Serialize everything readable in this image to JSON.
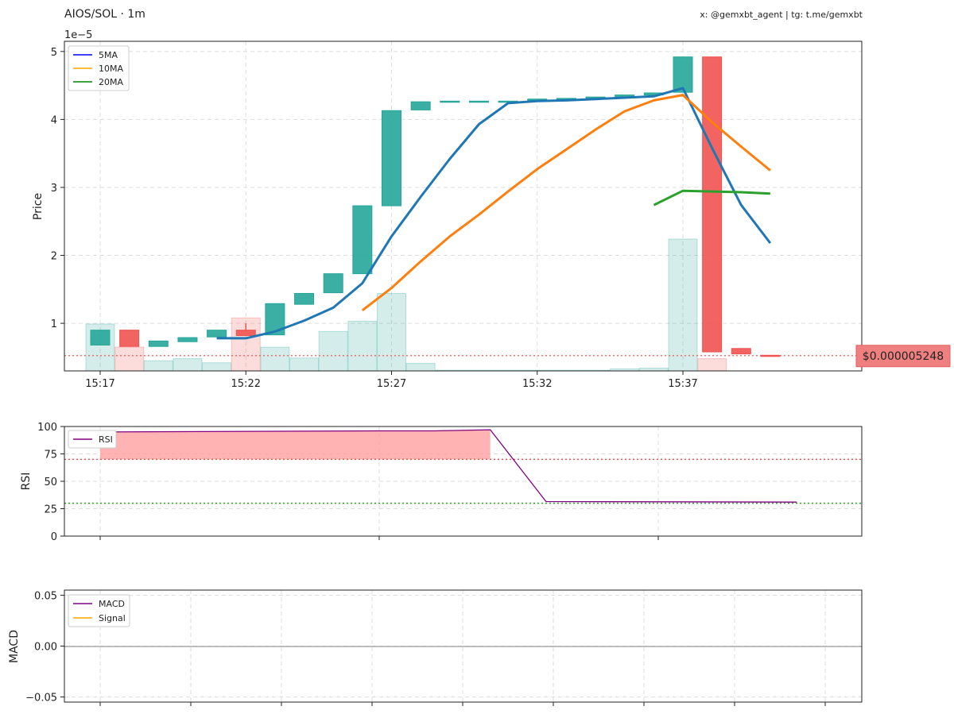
{
  "header": {
    "title": "AIOS/SOL · 1m",
    "credit": "x: @gemxbt_agent | tg: t.me/gemxbt"
  },
  "colors": {
    "up": "#26a69a",
    "down": "#ef5350",
    "ma5": "#1f77b4",
    "ma10": "#ff7f0e",
    "ma20": "#2ca02c",
    "rsi": "#800080",
    "signal": "#ffa500",
    "price_line": "#ef5350"
  },
  "chart_data": [
    {
      "type": "candlestick",
      "ylabel": "Price",
      "y_exponent_label": "1e−5",
      "ylim": [
        0.3,
        5.15
      ],
      "yticks": [
        "1",
        "2",
        "3",
        "4",
        "5"
      ],
      "ytick_values": [
        1,
        2,
        3,
        4,
        5
      ],
      "xtick_labels": [
        "15:17",
        "15:22",
        "15:27",
        "15:32",
        "15:37"
      ],
      "xtick_minutes": [
        17,
        22,
        27,
        32,
        37
      ],
      "grid": true,
      "legend": {
        "placement": "top-left",
        "entries": [
          "5MA",
          "10MA",
          "20MA"
        ]
      },
      "last_price_label": "$0.000005248",
      "last_price_value": 0.5248,
      "candles": [
        {
          "t": 17,
          "o": 0.68,
          "c": 0.9,
          "dir": "up"
        },
        {
          "t": 18,
          "o": 0.9,
          "c": 0.66,
          "dir": "down"
        },
        {
          "t": 19,
          "o": 0.66,
          "c": 0.74,
          "dir": "up"
        },
        {
          "t": 20,
          "o": 0.73,
          "c": 0.79,
          "dir": "up"
        },
        {
          "t": 21,
          "o": 0.8,
          "c": 0.9,
          "dir": "up"
        },
        {
          "t": 22,
          "o": 0.9,
          "c": 0.82,
          "h": 1.0,
          "dir": "down"
        },
        {
          "t": 23,
          "o": 0.83,
          "c": 1.29,
          "dir": "up"
        },
        {
          "t": 24,
          "o": 1.28,
          "c": 1.44,
          "dir": "up"
        },
        {
          "t": 25,
          "o": 1.45,
          "c": 1.73,
          "dir": "up"
        },
        {
          "t": 26,
          "o": 1.73,
          "c": 2.73,
          "dir": "up"
        },
        {
          "t": 27,
          "o": 2.73,
          "c": 4.13,
          "dir": "up"
        },
        {
          "t": 28,
          "o": 4.14,
          "c": 4.26,
          "dir": "up"
        },
        {
          "t": 29,
          "o": 4.26,
          "c": 4.27,
          "dir": "up"
        },
        {
          "t": 30,
          "o": 4.26,
          "c": 4.27,
          "dir": "up"
        },
        {
          "t": 31,
          "o": 4.26,
          "c": 4.27,
          "dir": "up"
        },
        {
          "t": 32,
          "o": 4.28,
          "c": 4.3,
          "dir": "up"
        },
        {
          "t": 33,
          "o": 4.29,
          "c": 4.31,
          "dir": "up"
        },
        {
          "t": 34,
          "o": 4.31,
          "c": 4.33,
          "dir": "up"
        },
        {
          "t": 35,
          "o": 4.33,
          "c": 4.36,
          "dir": "up"
        },
        {
          "t": 36,
          "o": 4.36,
          "c": 4.39,
          "dir": "up"
        },
        {
          "t": 37,
          "o": 4.4,
          "c": 4.92,
          "dir": "up"
        },
        {
          "t": 38,
          "o": 4.92,
          "c": 0.58,
          "dir": "down"
        },
        {
          "t": 39,
          "o": 0.63,
          "c": 0.55,
          "dir": "down"
        },
        {
          "t": 40,
          "o": 0.53,
          "c": 0.52,
          "dir": "down"
        }
      ],
      "volume": [
        {
          "t": 17,
          "v": 0.99,
          "dir": "up"
        },
        {
          "t": 18,
          "v": 0.65,
          "dir": "down"
        },
        {
          "t": 19,
          "v": 0.45,
          "dir": "up"
        },
        {
          "t": 20,
          "v": 0.48,
          "dir": "up"
        },
        {
          "t": 21,
          "v": 0.42,
          "dir": "up"
        },
        {
          "t": 22,
          "v": 1.08,
          "dir": "down"
        },
        {
          "t": 23,
          "v": 0.65,
          "dir": "up"
        },
        {
          "t": 24,
          "v": 0.49,
          "dir": "up"
        },
        {
          "t": 25,
          "v": 0.88,
          "dir": "up"
        },
        {
          "t": 26,
          "v": 1.03,
          "dir": "up"
        },
        {
          "t": 27,
          "v": 1.44,
          "dir": "up"
        },
        {
          "t": 28,
          "v": 0.41,
          "dir": "up"
        },
        {
          "t": 29,
          "v": 0.31,
          "dir": "up"
        },
        {
          "t": 30,
          "v": 0.31,
          "dir": "up"
        },
        {
          "t": 31,
          "v": 0.31,
          "dir": "up"
        },
        {
          "t": 32,
          "v": 0.31,
          "dir": "up"
        },
        {
          "t": 33,
          "v": 0.31,
          "dir": "up"
        },
        {
          "t": 34,
          "v": 0.31,
          "dir": "up"
        },
        {
          "t": 35,
          "v": 0.33,
          "dir": "up"
        },
        {
          "t": 36,
          "v": 0.34,
          "dir": "up"
        },
        {
          "t": 37,
          "v": 2.24,
          "dir": "up"
        },
        {
          "t": 38,
          "v": 0.48,
          "dir": "down"
        }
      ],
      "series": [
        {
          "name": "5MA",
          "points": [
            [
              21,
              0.78
            ],
            [
              22,
              0.78
            ],
            [
              23,
              0.88
            ],
            [
              24,
              1.04
            ],
            [
              25,
              1.23
            ],
            [
              26,
              1.59
            ],
            [
              27,
              2.28
            ],
            [
              28,
              2.86
            ],
            [
              29,
              3.42
            ],
            [
              30,
              3.93
            ],
            [
              31,
              4.24
            ],
            [
              32,
              4.27
            ],
            [
              33,
              4.28
            ],
            [
              34,
              4.3
            ],
            [
              35,
              4.32
            ],
            [
              36,
              4.34
            ],
            [
              37,
              4.46
            ],
            [
              38,
              3.58
            ],
            [
              39,
              2.74
            ],
            [
              40,
              2.18
            ]
          ]
        },
        {
          "name": "10MA",
          "points": [
            [
              26,
              1.19
            ],
            [
              27,
              1.52
            ],
            [
              28,
              1.91
            ],
            [
              29,
              2.28
            ],
            [
              30,
              2.6
            ],
            [
              31,
              2.94
            ],
            [
              32,
              3.27
            ],
            [
              33,
              3.56
            ],
            [
              34,
              3.85
            ],
            [
              35,
              4.12
            ],
            [
              36,
              4.28
            ],
            [
              37,
              4.36
            ],
            [
              38,
              3.96
            ],
            [
              39,
              3.6
            ],
            [
              40,
              3.25
            ]
          ]
        },
        {
          "name": "20MA",
          "points": [
            [
              36,
              2.74
            ],
            [
              37,
              2.95
            ],
            [
              38,
              2.94
            ],
            [
              39,
              2.93
            ],
            [
              40,
              2.91
            ]
          ]
        }
      ]
    },
    {
      "type": "line",
      "ylabel": "RSI",
      "ylim": [
        0,
        100
      ],
      "yticks": [
        "0",
        "25",
        "50",
        "75",
        "100"
      ],
      "ytick_values": [
        0,
        25,
        50,
        75,
        100
      ],
      "overbought": 70,
      "oversold": 30,
      "grid": true,
      "legend": {
        "placement": "top-left",
        "entries": [
          "RSI"
        ]
      },
      "series": [
        {
          "name": "RSI",
          "points": [
            [
              17,
              95
            ],
            [
              27,
              96
            ],
            [
              29,
              96
            ],
            [
              31,
              97
            ],
            [
              33,
              31.5
            ],
            [
              42,
              31
            ]
          ]
        }
      ]
    },
    {
      "type": "line",
      "ylabel": "MACD",
      "ylim": [
        -0.055,
        0.055
      ],
      "yticks": [
        "0.05",
        "0.00",
        "−0.05"
      ],
      "ytick_values": [
        0.05,
        0,
        -0.05
      ],
      "grid": true,
      "legend": {
        "placement": "top-left",
        "entries": [
          "MACD",
          "Signal"
        ]
      },
      "series": [
        {
          "name": "MACD",
          "points": []
        },
        {
          "name": "Signal",
          "points": []
        }
      ]
    }
  ]
}
